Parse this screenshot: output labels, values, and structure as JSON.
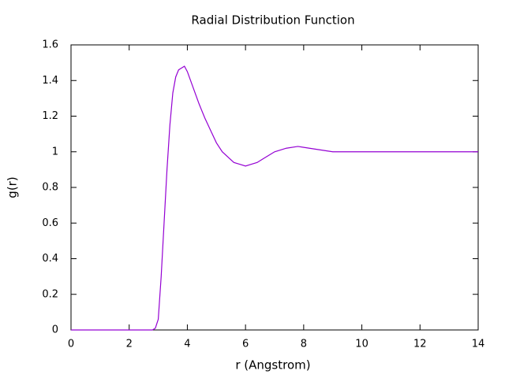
{
  "chart_data": {
    "type": "line",
    "title": "Radial Distribution Function",
    "x_label": "r (Angstrom)",
    "y_label": "g(r)",
    "x": [
      0,
      2.8,
      2.9,
      3.0,
      3.1,
      3.2,
      3.3,
      3.4,
      3.5,
      3.6,
      3.7,
      3.8,
      3.9,
      4.0,
      4.2,
      4.4,
      4.6,
      4.8,
      5.0,
      5.2,
      5.4,
      5.6,
      5.8,
      6.0,
      6.2,
      6.4,
      6.6,
      6.8,
      7.0,
      7.4,
      7.8,
      8.2,
      8.6,
      9.0,
      9.5,
      10,
      11,
      12,
      13,
      14
    ],
    "series": [
      {
        "color": "#9400d3",
        "values": [
          0,
          0,
          0.01,
          0.06,
          0.3,
          0.6,
          0.9,
          1.15,
          1.33,
          1.42,
          1.46,
          1.47,
          1.48,
          1.45,
          1.36,
          1.27,
          1.19,
          1.12,
          1.05,
          1.0,
          0.97,
          0.94,
          0.93,
          0.92,
          0.93,
          0.94,
          0.96,
          0.98,
          1.0,
          1.02,
          1.03,
          1.02,
          1.01,
          1.0,
          1.0,
          1.0,
          1.0,
          1.0,
          1.0,
          1.0
        ]
      }
    ],
    "xlim": [
      0,
      14
    ],
    "xticks": [
      0,
      2,
      4,
      6,
      8,
      10,
      12,
      14
    ],
    "ylim": [
      0,
      1.6
    ],
    "yticks": [
      0,
      0.2,
      0.4,
      0.6,
      0.8,
      1,
      1.2,
      1.4,
      1.6
    ]
  }
}
